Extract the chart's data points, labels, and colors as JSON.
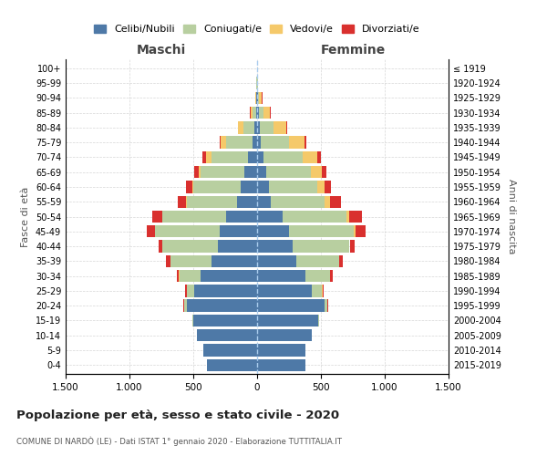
{
  "age_groups": [
    "0-4",
    "5-9",
    "10-14",
    "15-19",
    "20-24",
    "25-29",
    "30-34",
    "35-39",
    "40-44",
    "45-49",
    "50-54",
    "55-59",
    "60-64",
    "65-69",
    "70-74",
    "75-79",
    "80-84",
    "85-89",
    "90-94",
    "95-99",
    "100+"
  ],
  "birth_years": [
    "2015-2019",
    "2010-2014",
    "2005-2009",
    "2000-2004",
    "1995-1999",
    "1990-1994",
    "1985-1989",
    "1980-1984",
    "1975-1979",
    "1970-1974",
    "1965-1969",
    "1960-1964",
    "1955-1959",
    "1950-1954",
    "1945-1949",
    "1940-1944",
    "1935-1939",
    "1930-1934",
    "1925-1929",
    "1920-1924",
    "≤ 1919"
  ],
  "colors": {
    "celibi": "#4e79a7",
    "coniugati": "#b8cfa0",
    "vedovi": "#f5c96a",
    "divorziati": "#d9302e"
  },
  "maschi": {
    "celibi": [
      390,
      420,
      470,
      500,
      550,
      490,
      440,
      360,
      310,
      290,
      240,
      160,
      130,
      100,
      70,
      35,
      18,
      8,
      4,
      2,
      0
    ],
    "coniugati": [
      0,
      0,
      0,
      5,
      20,
      60,
      170,
      320,
      430,
      510,
      500,
      390,
      370,
      340,
      290,
      210,
      90,
      30,
      6,
      2,
      0
    ],
    "vedovi": [
      0,
      0,
      0,
      0,
      2,
      2,
      2,
      2,
      2,
      3,
      5,
      8,
      10,
      20,
      40,
      40,
      40,
      15,
      5,
      0,
      0
    ],
    "divorziati": [
      0,
      0,
      0,
      0,
      5,
      10,
      20,
      30,
      30,
      60,
      80,
      60,
      50,
      30,
      30,
      10,
      5,
      2,
      0,
      0,
      0
    ]
  },
  "femmine": {
    "nubili": [
      380,
      380,
      430,
      480,
      530,
      430,
      380,
      310,
      280,
      250,
      200,
      110,
      90,
      70,
      50,
      30,
      20,
      12,
      4,
      2,
      0
    ],
    "coniugate": [
      0,
      0,
      0,
      5,
      20,
      80,
      190,
      330,
      440,
      510,
      500,
      420,
      380,
      350,
      310,
      220,
      110,
      35,
      10,
      3,
      0
    ],
    "vedove": [
      0,
      0,
      0,
      0,
      2,
      2,
      3,
      3,
      5,
      10,
      20,
      40,
      60,
      90,
      110,
      120,
      100,
      55,
      25,
      5,
      0
    ],
    "divorziate": [
      0,
      0,
      0,
      0,
      5,
      10,
      20,
      30,
      40,
      80,
      100,
      90,
      50,
      30,
      30,
      15,
      8,
      5,
      2,
      0,
      0
    ]
  },
  "title": "Popolazione per età, sesso e stato civile - 2020",
  "subtitle": "COMUNE DI NARDÒ (LE) - Dati ISTAT 1° gennaio 2020 - Elaborazione TUTTITALIA.IT",
  "xlabel_left": "Maschi",
  "xlabel_right": "Femmine",
  "ylabel_left": "Fasce di età",
  "ylabel_right": "Anni di nascita",
  "xlim": 1500,
  "legend_labels": [
    "Celibi/Nubili",
    "Coniugati/e",
    "Vedovi/e",
    "Divorziati/e"
  ],
  "background_color": "#ffffff"
}
